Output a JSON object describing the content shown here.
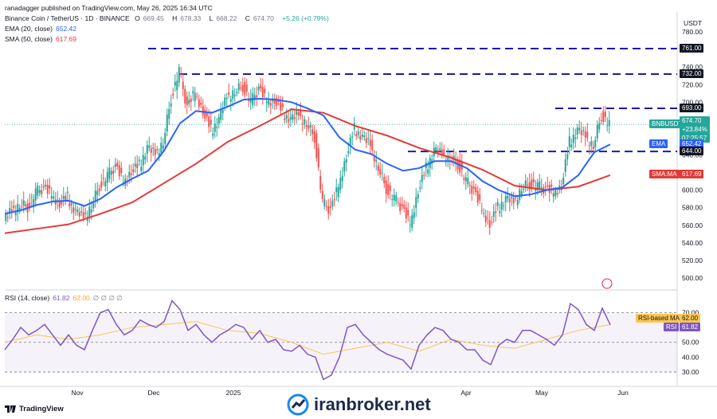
{
  "header": {
    "publisher": "ranadagger published on TradingView.com, May 26, 2025 16:34 UTC",
    "symbol_line": "Binance Coin / TetherUS · 1D · BINANCE",
    "ohlc": {
      "o_label": "O",
      "o": "669.45",
      "h_label": "H",
      "h": "678.33",
      "l_label": "L",
      "l": "668.22",
      "c_label": "C",
      "c": "674.70",
      "chg": "+5.26 (+0.79%)"
    },
    "ema_label": "EMA (20, close)",
    "ema_value": "652.42",
    "sma_label": "SMA (50, close)",
    "sma_value": "617.69",
    "rsi_label": "RSI (14, close)",
    "rsi_value": "61.82",
    "rsi_ma_value": "62.00"
  },
  "currency": "USDT",
  "colors": {
    "up": "#26a69a",
    "down": "#ef5350",
    "ema": "#2962ff",
    "sma": "#e53935",
    "dash": "#1a1aa6",
    "rsi": "#7e57c2",
    "rsi_ma": "#f9c74f",
    "tag_price": "#26a69a",
    "tag_level": "#131722"
  },
  "tags": {
    "price": {
      "symbol": "BNBUSDT",
      "value": "674.70",
      "change": "+23.84%",
      "timer": "07:25:57"
    },
    "ema": {
      "name": "EMA",
      "value": "652.42"
    },
    "sma": {
      "name": "SMA:MA",
      "value": "617.69"
    },
    "levels": [
      "761.00",
      "732.00",
      "693.00",
      "644.00"
    ],
    "rsi_ma": {
      "name": "RSI-based MA",
      "value": "62.00"
    },
    "rsi": {
      "name": "RSI",
      "value": "61.82"
    }
  },
  "footer": {
    "brand": "TradingView",
    "watermark": "iranbroker.net"
  },
  "chart_data": [
    {
      "type": "line",
      "title": "Binance Coin / TetherUS · 1D · BINANCE",
      "ylim": [
        490,
        800
      ],
      "yticks": [
        "780.00",
        "760.00",
        "740.00",
        "720.00",
        "700.00",
        "680.00",
        "660.00",
        "640.00",
        "620.00",
        "600.00",
        "580.00",
        "560.00",
        "540.00",
        "520.00",
        "500.00"
      ],
      "x_labels": [
        "Nov",
        "Dec",
        "2025",
        "Apr",
        "May",
        "Jun"
      ],
      "horizontal_levels": [
        761,
        732,
        693,
        644
      ],
      "series": [
        {
          "name": "EMA (20, close)",
          "points": [
            [
              0,
              573
            ],
            [
              20,
              577
            ],
            [
              40,
              583
            ],
            [
              60,
              587
            ],
            [
              80,
              588
            ],
            [
              100,
              582
            ],
            [
              120,
              590
            ],
            [
              140,
              603
            ],
            [
              160,
              613
            ],
            [
              180,
              622
            ],
            [
              200,
              645
            ],
            [
              220,
              676
            ],
            [
              240,
              690
            ],
            [
              260,
              688
            ],
            [
              280,
              695
            ],
            [
              300,
              703
            ],
            [
              320,
              704
            ],
            [
              340,
              703
            ],
            [
              360,
              700
            ],
            [
              380,
              693
            ],
            [
              400,
              685
            ],
            [
              420,
              660
            ],
            [
              440,
              646
            ],
            [
              460,
              641
            ],
            [
              480,
              630
            ],
            [
              500,
              622
            ],
            [
              520,
              625
            ],
            [
              540,
              633
            ],
            [
              560,
              633
            ],
            [
              580,
              625
            ],
            [
              600,
              610
            ],
            [
              620,
              600
            ],
            [
              640,
              593
            ],
            [
              660,
              595
            ],
            [
              680,
              600
            ],
            [
              700,
              603
            ],
            [
              720,
              617
            ],
            [
              740,
              643
            ],
            [
              760,
              652
            ]
          ]
        },
        {
          "name": "SMA (50, close)",
          "points": [
            [
              0,
              551
            ],
            [
              40,
              556
            ],
            [
              80,
              561
            ],
            [
              120,
              573
            ],
            [
              160,
              586
            ],
            [
              200,
              608
            ],
            [
              240,
              630
            ],
            [
              280,
              655
            ],
            [
              320,
              673
            ],
            [
              360,
              692
            ],
            [
              400,
              688
            ],
            [
              440,
              673
            ],
            [
              480,
              662
            ],
            [
              520,
              648
            ],
            [
              560,
              637
            ],
            [
              600,
              623
            ],
            [
              640,
              605
            ],
            [
              680,
              600
            ],
            [
              720,
              604
            ],
            [
              760,
              617
            ]
          ]
        },
        {
          "name": "Close",
          "points": [
            [
              0,
              565
            ],
            [
              10,
              576
            ],
            [
              20,
              583
            ],
            [
              30,
              581
            ],
            [
              40,
              597
            ],
            [
              50,
              603
            ],
            [
              60,
              595
            ],
            [
              70,
              585
            ],
            [
              80,
              592
            ],
            [
              90,
              575
            ],
            [
              100,
              568
            ],
            [
              110,
              581
            ],
            [
              120,
              605
            ],
            [
              130,
              616
            ],
            [
              140,
              628
            ],
            [
              150,
              610
            ],
            [
              160,
              622
            ],
            [
              170,
              628
            ],
            [
              180,
              648
            ],
            [
              190,
              640
            ],
            [
              200,
              654
            ],
            [
              210,
              705
            ],
            [
              220,
              735
            ],
            [
              230,
              695
            ],
            [
              240,
              712
            ],
            [
              250,
              690
            ],
            [
              260,
              668
            ],
            [
              270,
              680
            ],
            [
              280,
              705
            ],
            [
              290,
              712
            ],
            [
              300,
              718
            ],
            [
              310,
              700
            ],
            [
              320,
              716
            ],
            [
              330,
              702
            ],
            [
              340,
              703
            ],
            [
              350,
              688
            ],
            [
              360,
              680
            ],
            [
              370,
              685
            ],
            [
              380,
              675
            ],
            [
              390,
              660
            ],
            [
              400,
              585
            ],
            [
              410,
              578
            ],
            [
              420,
              605
            ],
            [
              430,
              640
            ],
            [
              440,
              670
            ],
            [
              450,
              660
            ],
            [
              460,
              650
            ],
            [
              470,
              625
            ],
            [
              480,
              602
            ],
            [
              490,
              590
            ],
            [
              500,
              580
            ],
            [
              510,
              562
            ],
            [
              520,
              600
            ],
            [
              530,
              625
            ],
            [
              540,
              645
            ],
            [
              550,
              640
            ],
            [
              560,
              635
            ],
            [
              570,
              630
            ],
            [
              580,
              610
            ],
            [
              590,
              600
            ],
            [
              600,
              578
            ],
            [
              610,
              562
            ],
            [
              620,
              580
            ],
            [
              630,
              590
            ],
            [
              640,
              585
            ],
            [
              650,
              602
            ],
            [
              660,
              607
            ],
            [
              670,
              604
            ],
            [
              680,
              602
            ],
            [
              690,
              598
            ],
            [
              700,
              605
            ],
            [
              710,
              655
            ],
            [
              720,
              668
            ],
            [
              730,
              660
            ],
            [
              740,
              650
            ],
            [
              750,
              685
            ],
            [
              760,
              675
            ]
          ]
        }
      ]
    },
    {
      "type": "line",
      "title": "RSI (14, close)",
      "ylim": [
        22,
        82
      ],
      "yticks": [
        "70.00",
        "60.00",
        "50.00",
        "40.00",
        "30.00"
      ],
      "reference_lines": [
        70,
        50,
        30
      ],
      "series": [
        {
          "name": "RSI",
          "points": [
            [
              0,
              45
            ],
            [
              10,
              52
            ],
            [
              20,
              60
            ],
            [
              30,
              55
            ],
            [
              40,
              58
            ],
            [
              50,
              62
            ],
            [
              60,
              55
            ],
            [
              70,
              48
            ],
            [
              80,
              55
            ],
            [
              90,
              48
            ],
            [
              100,
              45
            ],
            [
              110,
              58
            ],
            [
              120,
              70
            ],
            [
              130,
              72
            ],
            [
              140,
              62
            ],
            [
              150,
              55
            ],
            [
              160,
              58
            ],
            [
              170,
              65
            ],
            [
              180,
              62
            ],
            [
              190,
              60
            ],
            [
              200,
              64
            ],
            [
              210,
              78
            ],
            [
              220,
              72
            ],
            [
              230,
              58
            ],
            [
              240,
              62
            ],
            [
              250,
              55
            ],
            [
              260,
              50
            ],
            [
              270,
              55
            ],
            [
              280,
              58
            ],
            [
              290,
              62
            ],
            [
              300,
              60
            ],
            [
              310,
              52
            ],
            [
              320,
              58
            ],
            [
              330,
              50
            ],
            [
              340,
              52
            ],
            [
              350,
              45
            ],
            [
              360,
              44
            ],
            [
              370,
              48
            ],
            [
              380,
              42
            ],
            [
              390,
              40
            ],
            [
              400,
              25
            ],
            [
              410,
              28
            ],
            [
              420,
              40
            ],
            [
              430,
              60
            ],
            [
              440,
              62
            ],
            [
              450,
              55
            ],
            [
              460,
              50
            ],
            [
              470,
              45
            ],
            [
              480,
              42
            ],
            [
              490,
              40
            ],
            [
              500,
              38
            ],
            [
              510,
              32
            ],
            [
              520,
              48
            ],
            [
              530,
              55
            ],
            [
              540,
              60
            ],
            [
              550,
              58
            ],
            [
              560,
              52
            ],
            [
              570,
              50
            ],
            [
              580,
              45
            ],
            [
              590,
              45
            ],
            [
              600,
              38
            ],
            [
              610,
              35
            ],
            [
              620,
              48
            ],
            [
              630,
              52
            ],
            [
              640,
              50
            ],
            [
              650,
              58
            ],
            [
              660,
              58
            ],
            [
              670,
              55
            ],
            [
              680,
              52
            ],
            [
              690,
              48
            ],
            [
              700,
              55
            ],
            [
              710,
              76
            ],
            [
              720,
              72
            ],
            [
              730,
              62
            ],
            [
              740,
              58
            ],
            [
              750,
              73
            ],
            [
              760,
              61.82
            ]
          ]
        },
        {
          "name": "RSI-based MA",
          "points": [
            [
              0,
              50
            ],
            [
              40,
              55
            ],
            [
              80,
              52
            ],
            [
              120,
              55
            ],
            [
              160,
              60
            ],
            [
              200,
              62
            ],
            [
              240,
              64
            ],
            [
              280,
              58
            ],
            [
              320,
              56
            ],
            [
              360,
              50
            ],
            [
              400,
              42
            ],
            [
              440,
              46
            ],
            [
              480,
              50
            ],
            [
              520,
              44
            ],
            [
              560,
              52
            ],
            [
              600,
              48
            ],
            [
              640,
              46
            ],
            [
              680,
              52
            ],
            [
              720,
              58
            ],
            [
              760,
              62
            ]
          ]
        }
      ]
    }
  ]
}
